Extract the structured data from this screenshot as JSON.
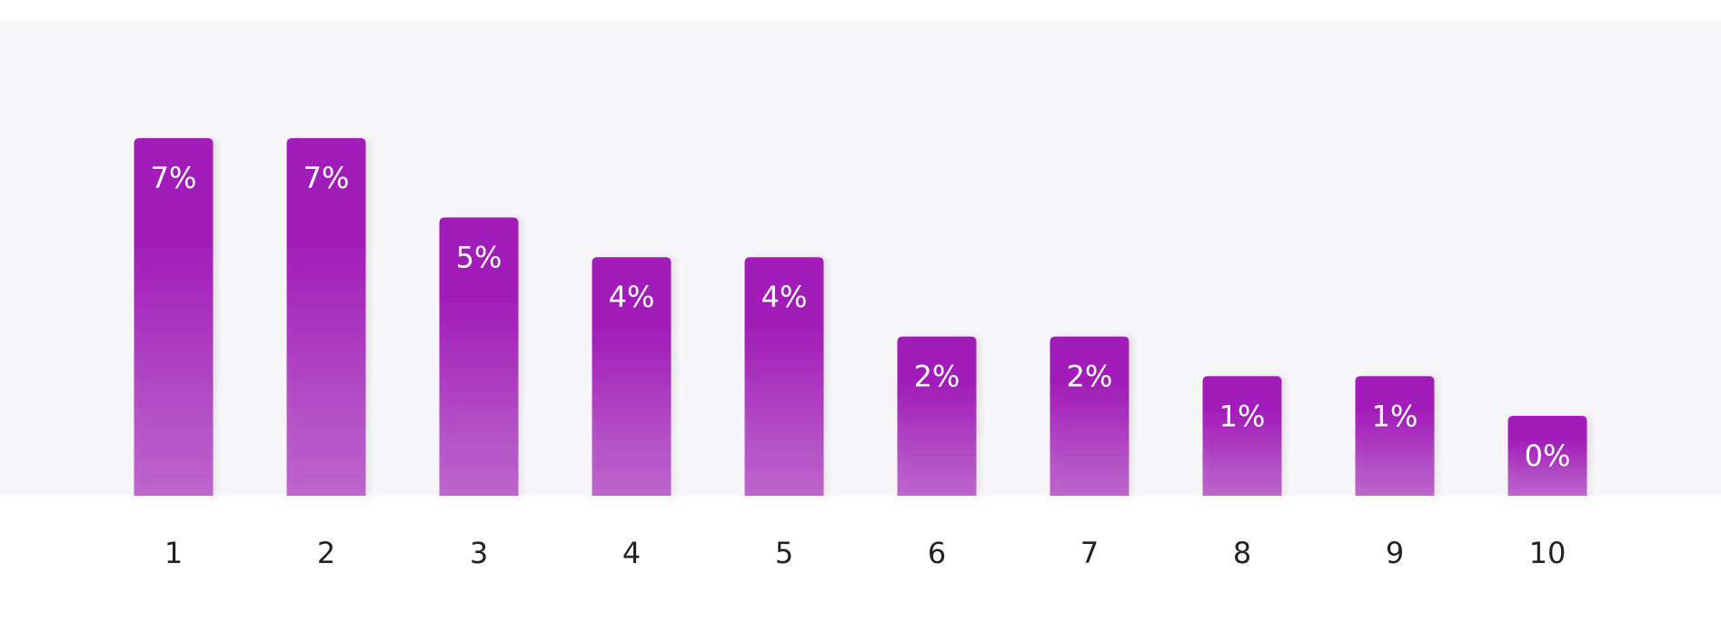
{
  "chart_data": {
    "type": "bar",
    "categories": [
      "1",
      "2",
      "3",
      "4",
      "5",
      "6",
      "7",
      "8",
      "9",
      "10"
    ],
    "values": [
      7,
      7,
      5,
      4,
      4,
      2,
      2,
      1,
      1,
      0
    ],
    "value_labels": [
      "7%",
      "7%",
      "5%",
      "4%",
      "4%",
      "2%",
      "2%",
      "1%",
      "1%",
      "0%"
    ],
    "color": "#a21fb9"
  }
}
